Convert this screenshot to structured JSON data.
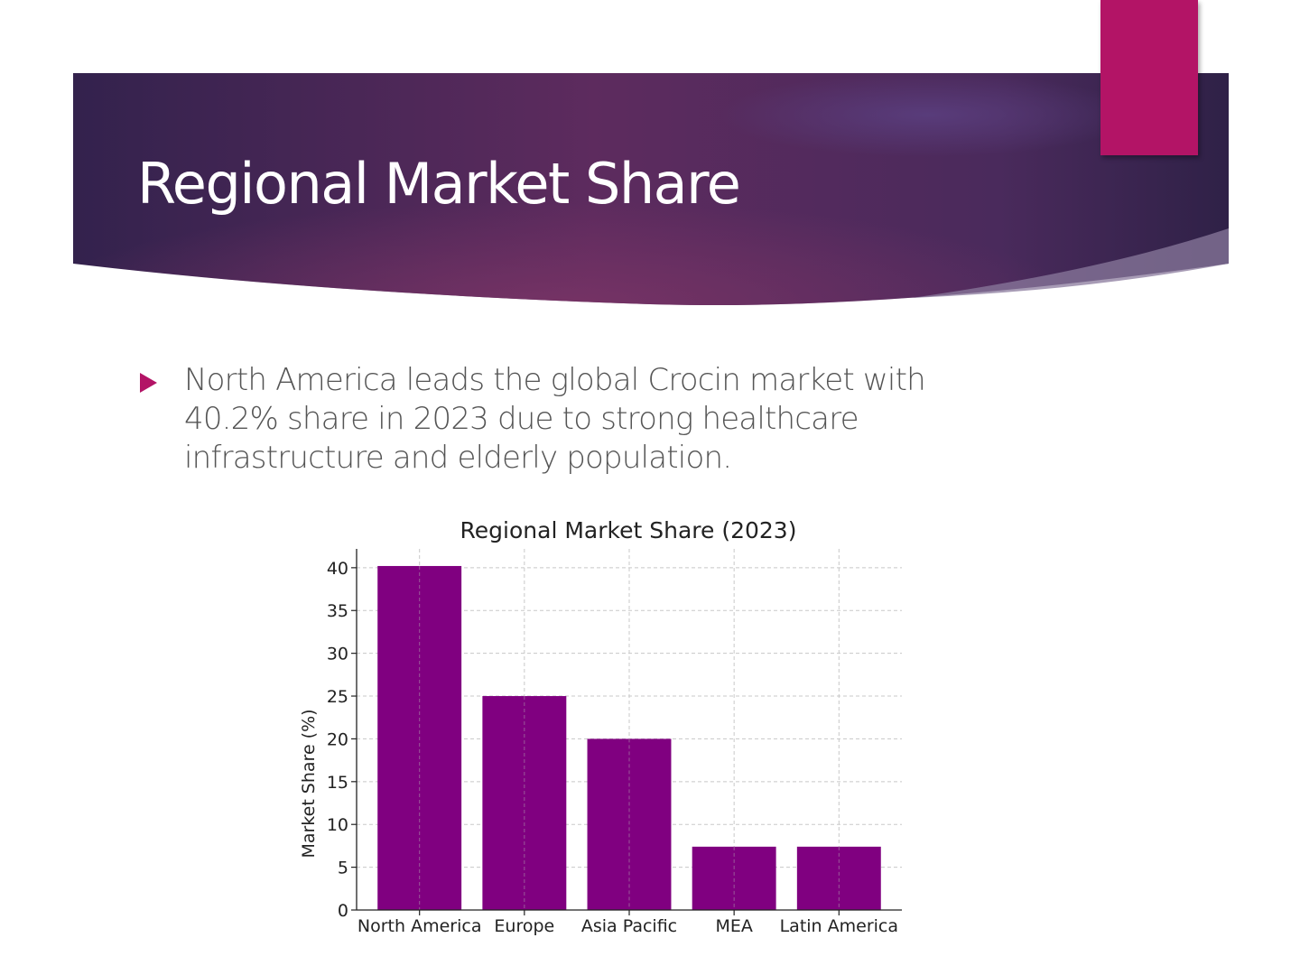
{
  "slide": {
    "title": "Regional Market Share",
    "bullet": "North America leads the global Crocin market with 40.2% share in 2023 due to strong healthcare infrastructure and elderly population."
  },
  "colors": {
    "banner_dark": "#2f2147",
    "banner_mid": "#6b2f60",
    "accent": "#b31466",
    "bar": "#800080",
    "body_text": "#555555"
  },
  "chart_data": {
    "type": "bar",
    "title": "Regional Market Share (2023)",
    "xlabel": "",
    "ylabel": "Market Share (%)",
    "categories": [
      "North America",
      "Europe",
      "Asia Pacific",
      "MEA",
      "Latin America"
    ],
    "values": [
      40.2,
      25,
      20,
      7.4,
      7.4
    ],
    "ylim": [
      0,
      42.2
    ],
    "yticks": [
      0,
      5,
      10,
      15,
      20,
      25,
      30,
      35,
      40
    ],
    "grid": true
  }
}
